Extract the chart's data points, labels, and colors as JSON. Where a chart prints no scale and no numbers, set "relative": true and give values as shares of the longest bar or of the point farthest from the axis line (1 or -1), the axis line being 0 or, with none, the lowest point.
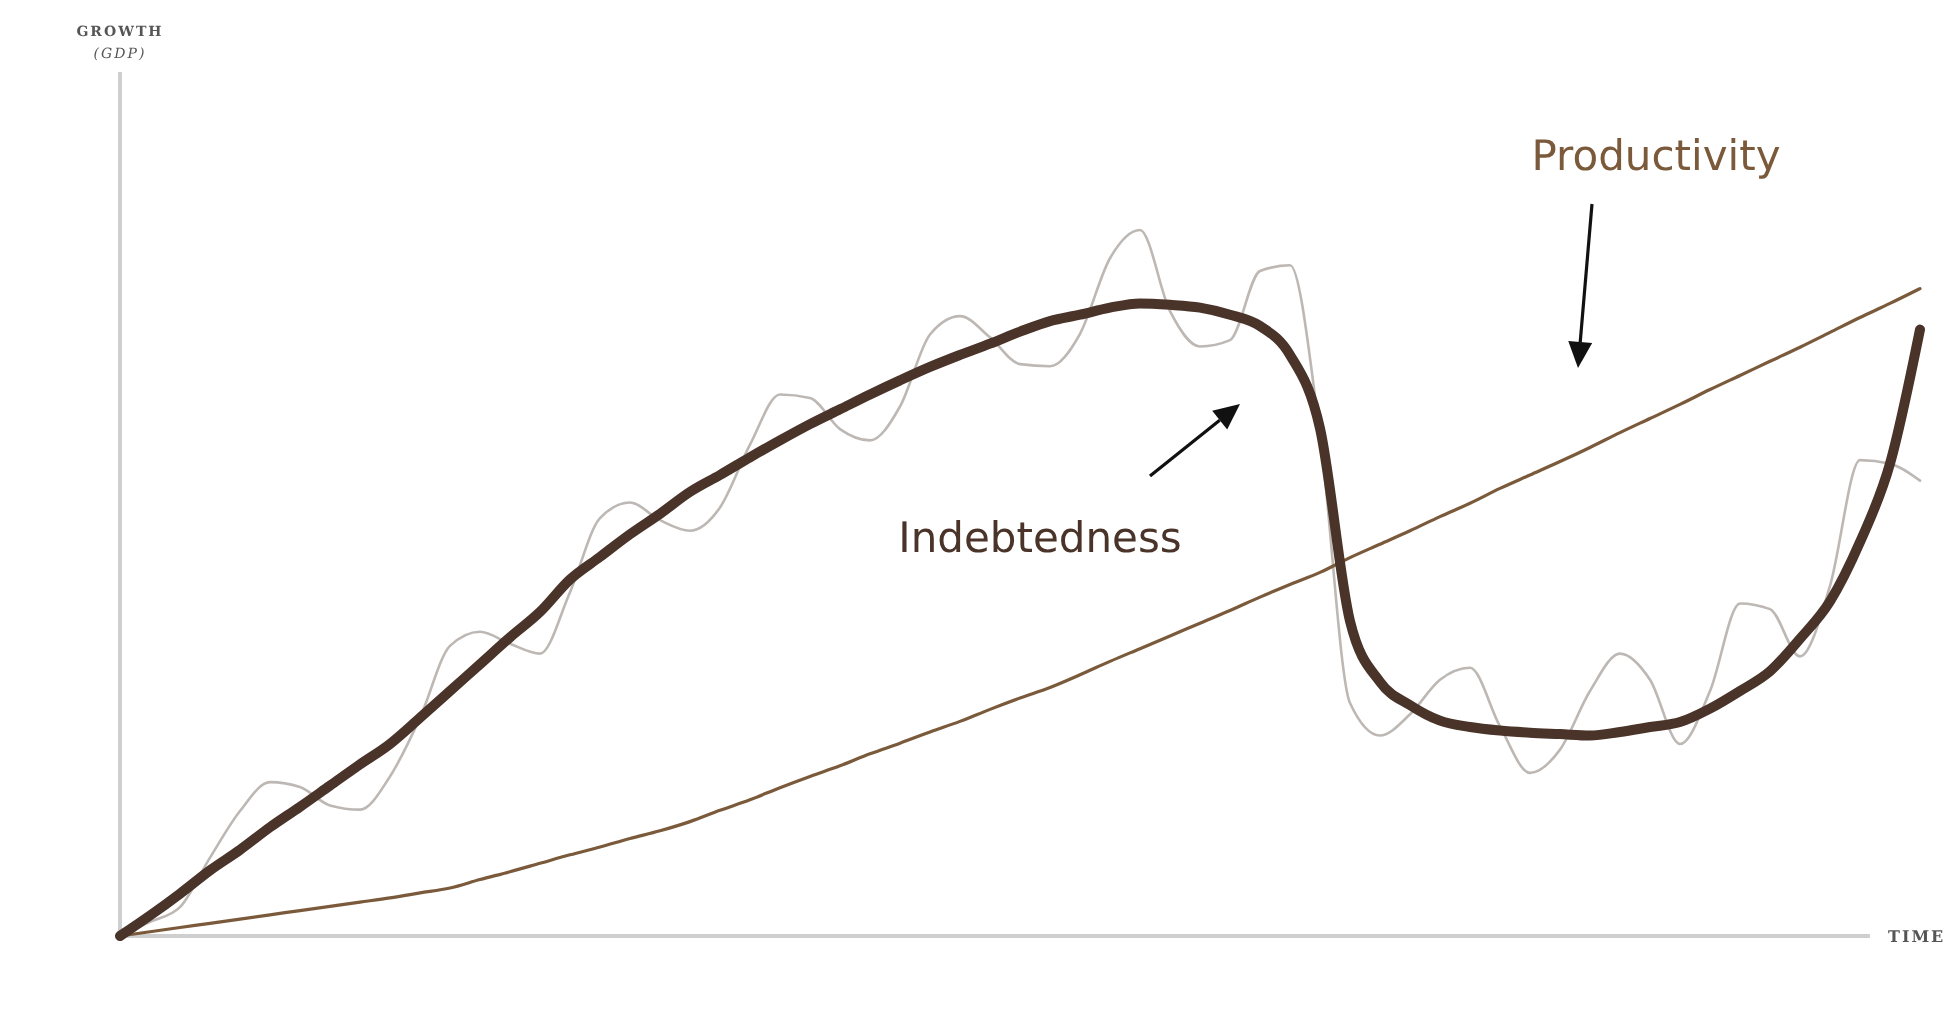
{
  "chart_data": {
    "type": "line",
    "relative": true,
    "annotations": [
      "GROWTH (GDP)"
    ],
    "xlabel": "TIME",
    "categories": [
      null,
      null,
      null,
      null,
      null,
      null,
      null,
      null,
      null,
      null,
      null,
      null,
      null,
      null,
      null,
      null,
      null,
      null,
      null,
      null,
      null,
      null,
      null,
      null,
      null,
      null,
      null,
      null,
      null,
      null,
      null,
      null,
      null,
      null,
      null,
      null,
      null,
      null,
      null,
      null,
      null,
      null,
      null,
      null,
      null,
      null,
      null,
      null,
      null,
      null,
      null,
      null,
      null,
      null,
      null,
      null,
      null,
      null,
      null,
      null,
      null
    ],
    "series": [
      {
        "color": "#bdb8b4",
        "values": [
          0,
          0.02,
          0.041,
          0.111,
          0.177,
          0.218,
          0.211,
          0.185,
          0.179,
          0.226,
          0.309,
          0.411,
          0.431,
          0.414,
          0.4,
          0.487,
          0.592,
          0.614,
          0.589,
          0.574,
          0.607,
          0.696,
          0.767,
          0.762,
          0.718,
          0.702,
          0.75,
          0.852,
          0.878,
          0.848,
          0.81,
          0.807,
          0.853,
          0.96,
          1.0,
          0.885,
          0.835,
          0.844,
          0.942,
          0.95,
          0.711,
          0.33,
          0.284,
          0.314,
          0.363,
          0.38,
          0.297,
          0.231,
          0.264,
          0.347,
          0.4,
          0.363,
          0.272,
          0.347,
          0.471,
          0.463,
          0.396,
          0.496,
          0.674,
          0.669,
          0.645
        ]
      },
      {
        "name": "Productivity",
        "color": "#7a5a3a",
        "values": [
          0,
          0.006,
          0.012,
          0.018,
          0.024,
          0.03,
          0.036,
          0.042,
          0.048,
          0.054,
          0.061,
          0.068,
          0.08,
          0.091,
          0.103,
          0.115,
          0.126,
          0.138,
          0.149,
          0.162,
          0.178,
          0.193,
          0.21,
          0.226,
          0.241,
          0.258,
          0.273,
          0.289,
          0.304,
          0.321,
          0.337,
          0.352,
          0.37,
          0.389,
          0.407,
          0.425,
          0.443,
          0.461,
          0.48,
          0.498,
          0.515,
          0.536,
          0.555,
          0.574,
          0.594,
          0.613,
          0.634,
          0.653,
          0.672,
          0.692,
          0.713,
          0.733,
          0.753,
          0.774,
          0.794,
          0.814,
          0.834,
          0.855,
          0.876,
          0.896,
          0.917
        ]
      },
      {
        "name": "Indebtedness",
        "color": "#4a3328",
        "values": [
          0,
          0.029,
          0.06,
          0.093,
          0.122,
          0.154,
          0.183,
          0.213,
          0.243,
          0.272,
          0.309,
          0.347,
          0.385,
          0.423,
          0.459,
          0.505,
          0.537,
          0.569,
          0.598,
          0.629,
          0.653,
          0.678,
          0.702,
          0.725,
          0.746,
          0.767,
          0.787,
          0.806,
          0.823,
          0.839,
          0.856,
          0.871,
          0.88,
          0.89,
          0.896,
          0.894,
          0.89,
          0.88,
          0.864,
          0.823,
          0.719,
          0.446,
          0.36,
          0.327,
          0.305,
          0.296,
          0.291,
          0.288,
          0.286,
          0.284,
          0.289,
          0.296,
          0.303,
          0.322,
          0.347,
          0.375,
          0.421,
          0.474,
          0.558,
          0.669,
          0.859
        ]
      }
    ]
  }
}
